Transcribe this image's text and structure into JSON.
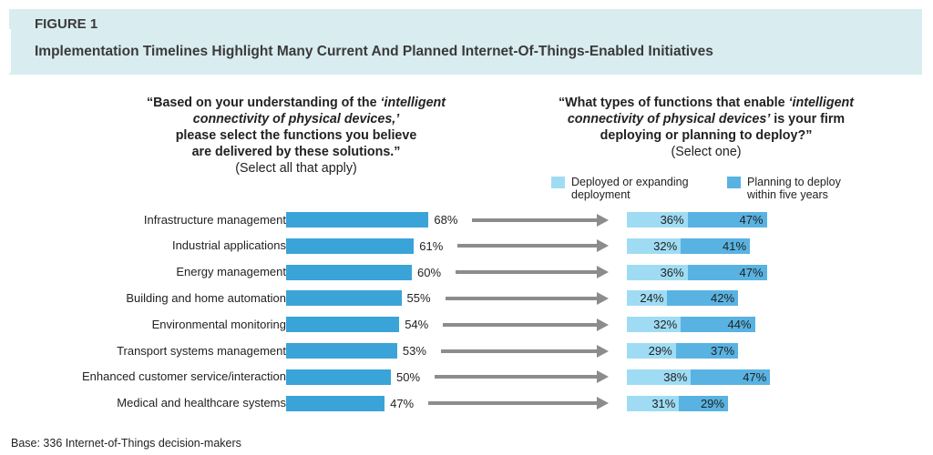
{
  "figure_label": "FIGURE 1",
  "figure_title": "Implementation Timelines Highlight Many Current And Planned Internet-Of-Things-Enabled Initiatives",
  "left_question": {
    "line1_a": "“Based on your understanding of the ",
    "line1_b": "‘intelligent",
    "line2": "connectivity of physical devices,’",
    "line3": "please select the functions you believe",
    "line4": "are delivered by these solutions.”",
    "line5": "(Select all that apply)"
  },
  "right_question": {
    "line1_a": "“What types of functions that enable ",
    "line1_b": "‘intelligent",
    "line2_a": "connectivity of physical devices’",
    "line2_b": " is your firm",
    "line3": "deploying or planning to deploy?”",
    "line4": "(Select one)"
  },
  "legend": {
    "deployed_line1": "Deployed or expanding",
    "deployed_line2": "deployment",
    "planning_line1": "Planning to deploy",
    "planning_line2": "within five years"
  },
  "colors": {
    "left_bar": "#3aa4d8",
    "deployed": "#9fdcf4",
    "planning": "#59b3e2",
    "arrow": "#8c8c8c",
    "header_bg": "#d9ecef"
  },
  "chart_data": [
    {
      "type": "bar",
      "orientation": "horizontal",
      "categories": [
        "Infrastructure management",
        "Industrial applications",
        "Energy management",
        "Building and home automation",
        "Environmental monitoring",
        "Transport systems management",
        "Enhanced customer service/interaction",
        "Medical and healthcare systems"
      ],
      "values": [
        68,
        61,
        60,
        55,
        54,
        53,
        50,
        47
      ],
      "value_labels": [
        "68%",
        "61%",
        "60%",
        "55%",
        "54%",
        "53%",
        "50%",
        "47%"
      ]
    },
    {
      "type": "bar",
      "orientation": "horizontal",
      "stacked": true,
      "categories": [
        "Infrastructure management",
        "Industrial applications",
        "Energy management",
        "Building and home automation",
        "Environmental monitoring",
        "Transport systems management",
        "Enhanced customer service/interaction",
        "Medical and healthcare systems"
      ],
      "series": [
        {
          "name": "Deployed or expanding deployment",
          "values": [
            36,
            32,
            36,
            24,
            32,
            29,
            38,
            31
          ],
          "labels": [
            "36%",
            "32%",
            "36%",
            "24%",
            "32%",
            "29%",
            "38%",
            "31%"
          ]
        },
        {
          "name": "Planning to deploy within five years",
          "values": [
            47,
            41,
            47,
            42,
            44,
            37,
            47,
            29
          ],
          "labels": [
            "47%",
            "41%",
            "47%",
            "42%",
            "44%",
            "37%",
            "47%",
            "29%"
          ]
        }
      ]
    }
  ],
  "base_note": "Base: 336 Internet-of-Things decision-makers"
}
